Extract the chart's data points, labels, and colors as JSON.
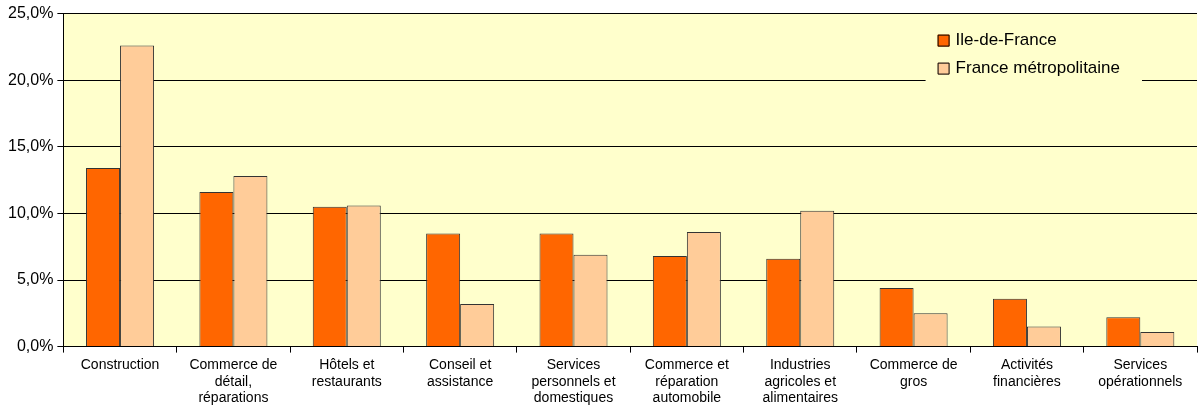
{
  "chart_data": {
    "type": "bar",
    "categories": [
      "Construction",
      "Commerce de détail, réparations",
      "Hôtels et restaurants",
      "Conseil et assistance",
      "Services personnels et domestiques",
      "Commerce et réparation automobile",
      "Industries agricoles et alimentaires",
      "Commerce de gros",
      "Activités financières",
      "Services opérationnels"
    ],
    "series": [
      {
        "name": "Ile-de-France",
        "color": "#ff6600",
        "values": [
          13.4,
          11.6,
          10.5,
          8.5,
          8.5,
          6.8,
          6.6,
          4.4,
          3.6,
          2.2
        ]
      },
      {
        "name": "France métropolitaine",
        "color": "#ffcc99",
        "values": [
          22.6,
          12.8,
          10.6,
          3.2,
          6.9,
          8.6,
          10.2,
          2.5,
          1.5,
          1.1
        ]
      }
    ],
    "ylim": [
      0,
      25
    ],
    "yticks": [
      {
        "value": 0,
        "label": "0,0%"
      },
      {
        "value": 5,
        "label": "5,0%"
      },
      {
        "value": 10,
        "label": "10,0%"
      },
      {
        "value": 15,
        "label": "15,0%"
      },
      {
        "value": 20,
        "label": "20,0%"
      },
      {
        "value": 25,
        "label": "25,0%"
      }
    ],
    "grid": "y",
    "legend": "top right"
  }
}
